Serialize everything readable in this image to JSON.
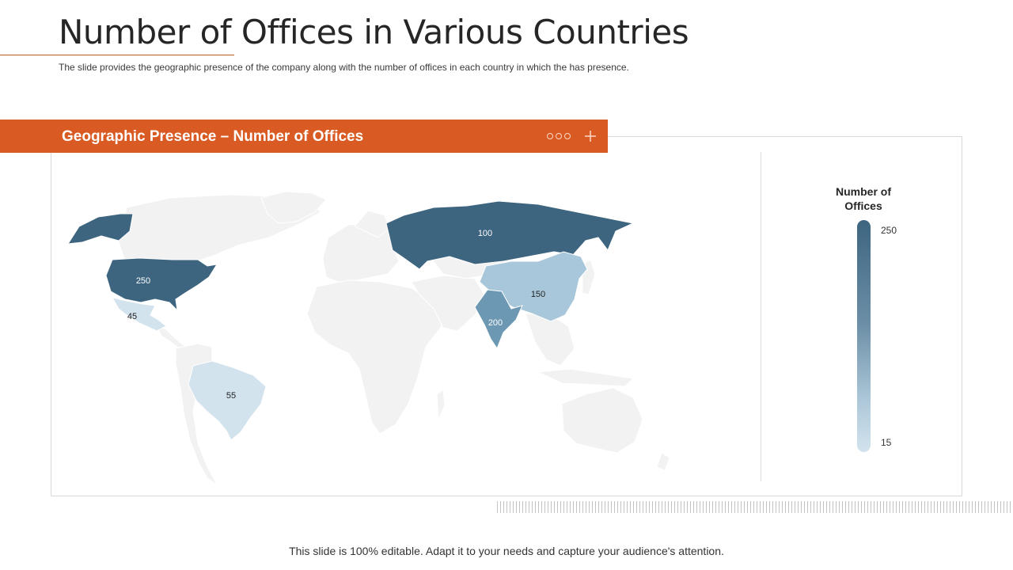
{
  "slide": {
    "title": "Number of Offices in Various Countries",
    "subtitle": "The slide provides  the geographic  presence  of the company along with the number  of offices  in each country in which the has presence.",
    "footer": "This slide is 100% editable.  Adapt it to your needs and capture your audience's attention."
  },
  "banner": {
    "title": "Geographic Presence – Number of Offices",
    "icons": [
      "three-dots-icon",
      "plus-icon"
    ]
  },
  "legend": {
    "title_line1": "Number of",
    "title_line2": "Offices",
    "max_label": "250",
    "min_label": "15",
    "colors": {
      "high": "#3d6580",
      "low": "#d3e3ee"
    }
  },
  "colors": {
    "accent": "#d95a22",
    "land": "#f2f2f2",
    "border": "#d9d9d9"
  },
  "map_data": {
    "type": "choropleth",
    "metric": "Number of Offices",
    "scale": {
      "min": 15,
      "max": 250
    },
    "regions": [
      {
        "country": "United States",
        "value": 250,
        "label": "250",
        "color": "#3d6580"
      },
      {
        "country": "Mexico",
        "value": 45,
        "label": "45",
        "color": "#d3e3ee"
      },
      {
        "country": "Brazil",
        "value": 55,
        "label": "55",
        "color": "#d3e3ee"
      },
      {
        "country": "Russia",
        "value": 100,
        "label": "100",
        "color": "#3d6580"
      },
      {
        "country": "China",
        "value": 150,
        "label": "150",
        "color": "#a9c7da"
      },
      {
        "country": "India",
        "value": 200,
        "label": "200",
        "color": "#6c98b3"
      }
    ]
  }
}
